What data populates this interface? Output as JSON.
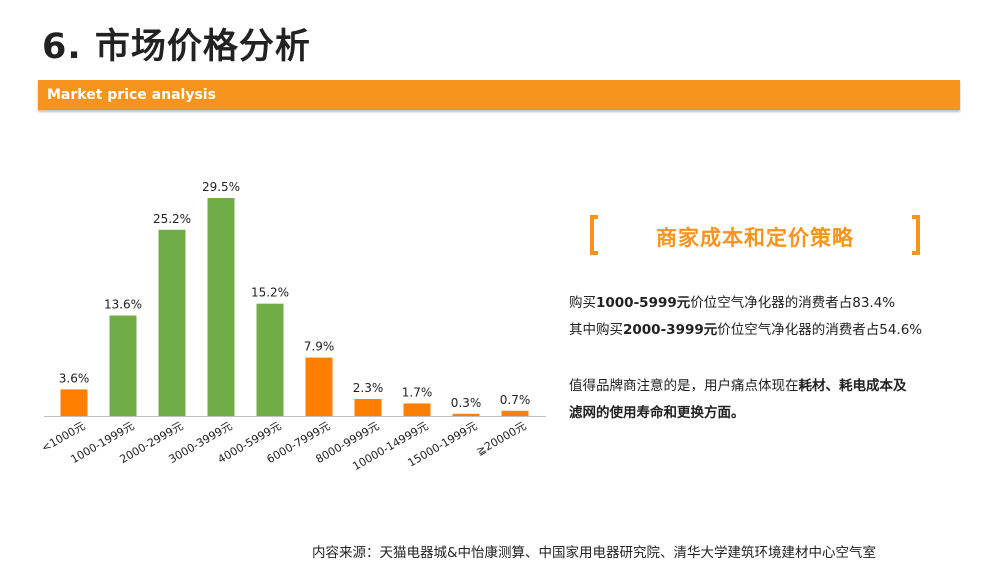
{
  "page": {
    "title": "6. 市场价格分析",
    "subtitle": "Market price analysis"
  },
  "colors": {
    "accent": "#f7941d",
    "green": "#70ad47",
    "orange": "#ff7f00"
  },
  "chart_data": {
    "type": "bar",
    "categories": [
      "<1000元",
      "1000-1999元",
      "2000-2999元",
      "3000-3999元",
      "4000-5999元",
      "6000-7999元",
      "8000-9999元",
      "10000-14999元",
      "15000-1999元",
      "≧20000元"
    ],
    "values": [
      3.6,
      13.6,
      25.2,
      29.5,
      15.2,
      7.9,
      2.3,
      1.7,
      0.3,
      0.7
    ],
    "labels": [
      "3.6%",
      "13.6%",
      "25.2%",
      "29.5%",
      "15.2%",
      "7.9%",
      "2.3%",
      "1.7%",
      "0.3%",
      "0.7%"
    ],
    "bar_colors": [
      "#ff7f00",
      "#70ad47",
      "#70ad47",
      "#70ad47",
      "#70ad47",
      "#ff7f00",
      "#ff7f00",
      "#ff7f00",
      "#ff7f00",
      "#ff7f00"
    ],
    "unit": "%",
    "ylim": [
      0,
      30
    ],
    "grid": false,
    "legend": "none"
  },
  "panel": {
    "title": "商家成本和定价策略",
    "line1": {
      "pre": "购买",
      "bold": "1000-5999元",
      "post": "价位空气净化器的消费者占83.4%"
    },
    "line2": {
      "pre": "其中购买",
      "bold": "2000-3999元",
      "post": "价位空气净化器的消费者占54.6%"
    },
    "line3": {
      "pre": "值得品牌商注意的是，用户痛点体现在",
      "bold": "耗材、耗电成本及"
    },
    "line4": {
      "bold": "滤网的使用寿命和更换方面。"
    }
  },
  "source": "内容来源：天猫电器城&中怡康测算、中国家用电器研究院、清华大学建筑环境建材中心空气室"
}
